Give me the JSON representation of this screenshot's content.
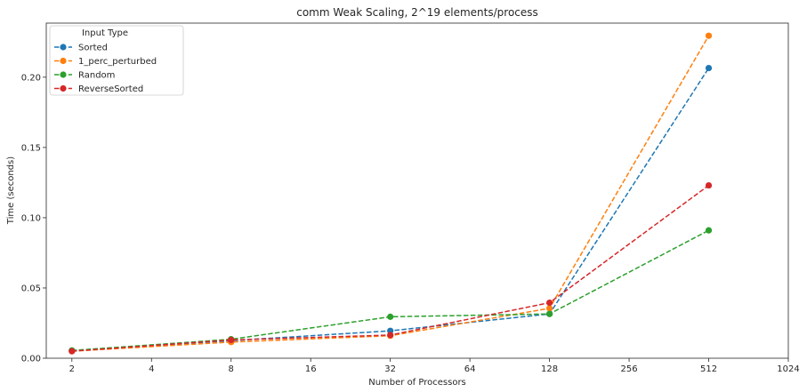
{
  "chart_data": {
    "type": "line",
    "title": "comm Weak Scaling, 2^19 elements/process",
    "xlabel": "Number of Processors",
    "ylabel": "Time (seconds)",
    "x_scale": "log2",
    "xlim": [
      1.6,
      1024
    ],
    "ylim": [
      0,
      0.2385
    ],
    "x_ticks": [
      2,
      4,
      8,
      16,
      32,
      64,
      128,
      256,
      512,
      1024
    ],
    "x_tick_labels": [
      "2",
      "4",
      "8",
      "16",
      "32",
      "64",
      "128",
      "256",
      "512",
      "1024"
    ],
    "y_ticks": [
      0.0,
      0.05,
      0.1,
      0.15,
      0.2
    ],
    "y_tick_labels": [
      "0.00",
      "0.05",
      "0.10",
      "0.15",
      "0.20"
    ],
    "grid": false,
    "legend": {
      "title": "Input Type",
      "placement": "top-left"
    },
    "x": [
      2,
      8,
      32,
      128,
      512
    ],
    "series": [
      {
        "name": "Sorted",
        "color": "#1f77b4",
        "values": [
          0.0055,
          0.0125,
          0.0195,
          0.0315,
          0.2065
        ]
      },
      {
        "name": "1_perc_perturbed",
        "color": "#ff7f0e",
        "values": [
          0.005,
          0.0115,
          0.016,
          0.0355,
          0.2295
        ]
      },
      {
        "name": "Random",
        "color": "#2ca02c",
        "values": [
          0.0055,
          0.0135,
          0.0295,
          0.0315,
          0.091
        ]
      },
      {
        "name": "ReverseSorted",
        "color": "#d62728",
        "values": [
          0.005,
          0.013,
          0.0165,
          0.0395,
          0.123
        ]
      }
    ]
  }
}
